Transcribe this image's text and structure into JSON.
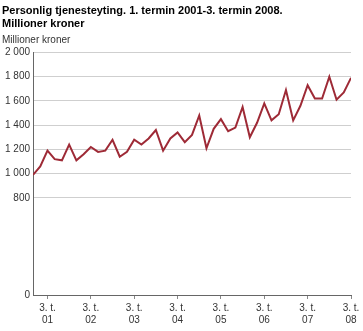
{
  "chart_data": {
    "type": "line",
    "title": [
      "Personlig tjenesteyting. 1. termin 2001-3. termin 2008.",
      "Millioner kroner"
    ],
    "y_label": "Millioner kroner",
    "categories": [
      null,
      null,
      [
        "3. t.",
        "01"
      ],
      null,
      null,
      null,
      null,
      null,
      [
        "3. t.",
        "02"
      ],
      null,
      null,
      null,
      null,
      null,
      [
        "3. t.",
        "03"
      ],
      null,
      null,
      null,
      null,
      null,
      [
        "3. t.",
        "04"
      ],
      null,
      null,
      null,
      null,
      null,
      [
        "3. t.",
        "05"
      ],
      null,
      null,
      null,
      null,
      null,
      [
        "3. t.",
        "06"
      ],
      null,
      null,
      null,
      null,
      null,
      [
        "3. t.",
        "07"
      ],
      null,
      null,
      null,
      null,
      null,
      [
        "3. t.",
        "08"
      ]
    ],
    "values": [
      990,
      1060,
      1190,
      1120,
      1110,
      1240,
      1110,
      1160,
      1220,
      1180,
      1190,
      1280,
      1140,
      1180,
      1280,
      1240,
      1290,
      1360,
      1190,
      1290,
      1340,
      1260,
      1320,
      1480,
      1210,
      1370,
      1450,
      1350,
      1380,
      1550,
      1300,
      1420,
      1580,
      1440,
      1490,
      1690,
      1440,
      1560,
      1730,
      1620,
      1620,
      1800,
      1610,
      1670,
      1790
    ],
    "color": "#9e2a36",
    "ylim": [
      0,
      2000
    ],
    "yticks": [
      0,
      800,
      {
        "value": 1000,
        "label": "1 000"
      },
      {
        "value": 1200,
        "label": "1 200"
      },
      {
        "value": 1400,
        "label": "1 400"
      },
      {
        "value": 1600,
        "label": "1 600"
      },
      {
        "value": 1800,
        "label": "1 800"
      },
      {
        "value": 2000,
        "label": "2 000"
      }
    ],
    "grid": true
  }
}
